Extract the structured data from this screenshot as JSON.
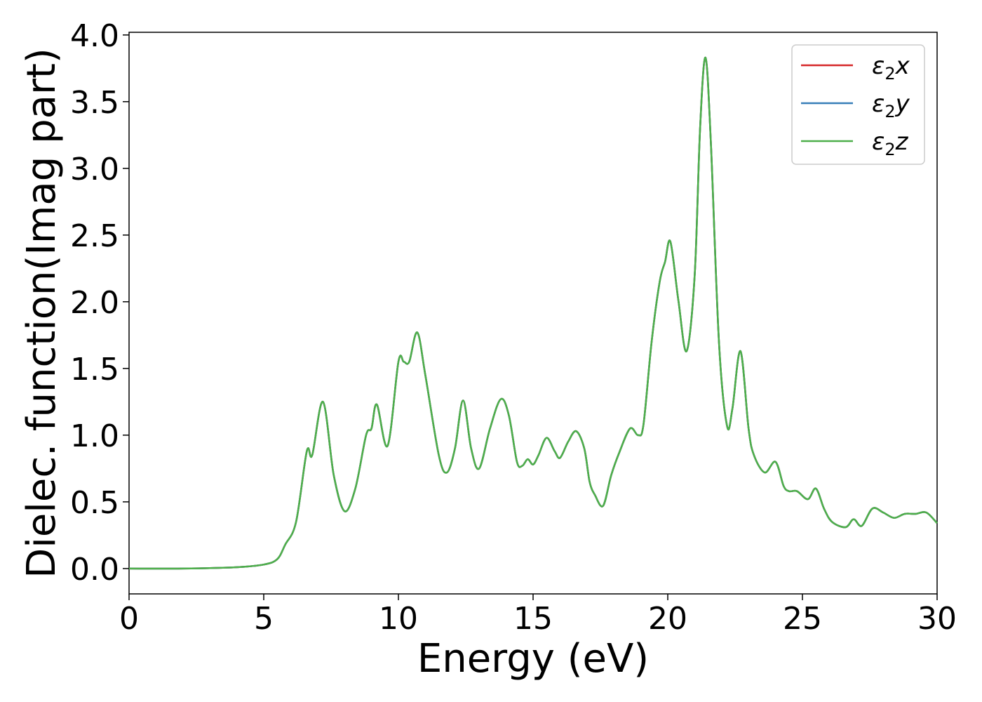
{
  "chart_data": {
    "type": "line",
    "title": "",
    "xlabel": "Energy (eV)",
    "ylabel": "Dielec. function(Imag part)",
    "xlim": [
      0,
      30
    ],
    "ylim": [
      -0.19,
      4.02
    ],
    "xticks": [
      0,
      5,
      10,
      15,
      20,
      25,
      30
    ],
    "xtick_labels": [
      "0",
      "5",
      "10",
      "15",
      "20",
      "25",
      "30"
    ],
    "yticks": [
      0.0,
      0.5,
      1.0,
      1.5,
      2.0,
      2.5,
      3.0,
      3.5,
      4.0
    ],
    "ytick_labels": [
      "0.0",
      "0.5",
      "1.0",
      "1.5",
      "2.0",
      "2.5",
      "3.0",
      "3.5",
      "4.0"
    ],
    "grid": false,
    "legend_position": "top-right",
    "x": [
      0,
      2,
      4,
      5,
      5.5,
      5.8,
      6.2,
      6.6,
      6.8,
      7.2,
      7.6,
      8.0,
      8.4,
      8.8,
      9.0,
      9.2,
      9.6,
      10.0,
      10.2,
      10.4,
      10.7,
      11.0,
      11.5,
      11.8,
      12.1,
      12.4,
      12.7,
      13.0,
      13.4,
      13.8,
      14.1,
      14.4,
      14.6,
      14.8,
      15.0,
      15.2,
      15.5,
      15.8,
      16.0,
      16.3,
      16.6,
      16.9,
      17.1,
      17.3,
      17.6,
      17.9,
      18.2,
      18.6,
      18.9,
      19.1,
      19.4,
      19.7,
      19.9,
      20.1,
      20.4,
      20.7,
      21.0,
      21.2,
      21.4,
      21.6,
      21.9,
      22.2,
      22.4,
      22.7,
      23.0,
      23.2,
      23.6,
      24.0,
      24.3,
      24.5,
      24.8,
      25.2,
      25.5,
      25.8,
      26.1,
      26.6,
      26.9,
      27.2,
      27.6,
      28.0,
      28.4,
      28.8,
      29.2,
      29.6,
      30.0
    ],
    "series": [
      {
        "name": "ε₂x",
        "color": "#d62728",
        "values": [
          0.0,
          0.0,
          0.01,
          0.03,
          0.07,
          0.18,
          0.35,
          0.88,
          0.85,
          1.25,
          0.7,
          0.43,
          0.6,
          1.0,
          1.05,
          1.23,
          0.92,
          1.55,
          1.55,
          1.55,
          1.77,
          1.45,
          0.85,
          0.72,
          0.9,
          1.26,
          0.9,
          0.75,
          1.05,
          1.27,
          1.15,
          0.8,
          0.77,
          0.82,
          0.78,
          0.85,
          0.98,
          0.88,
          0.83,
          0.95,
          1.03,
          0.9,
          0.65,
          0.55,
          0.47,
          0.7,
          0.87,
          1.05,
          1.0,
          1.08,
          1.7,
          2.15,
          2.3,
          2.45,
          2.0,
          1.63,
          2.2,
          3.3,
          3.83,
          3.2,
          1.7,
          1.07,
          1.2,
          1.63,
          1.05,
          0.85,
          0.72,
          0.8,
          0.62,
          0.58,
          0.58,
          0.52,
          0.6,
          0.45,
          0.35,
          0.31,
          0.37,
          0.32,
          0.45,
          0.42,
          0.38,
          0.41,
          0.41,
          0.42,
          0.34
        ]
      },
      {
        "name": "ε₂y",
        "color": "#377eb8",
        "values": [
          0.0,
          0.0,
          0.01,
          0.03,
          0.07,
          0.18,
          0.35,
          0.88,
          0.85,
          1.25,
          0.7,
          0.43,
          0.6,
          1.0,
          1.05,
          1.23,
          0.92,
          1.55,
          1.55,
          1.55,
          1.77,
          1.45,
          0.85,
          0.72,
          0.9,
          1.26,
          0.9,
          0.75,
          1.05,
          1.27,
          1.15,
          0.8,
          0.77,
          0.82,
          0.78,
          0.85,
          0.98,
          0.88,
          0.83,
          0.95,
          1.03,
          0.9,
          0.65,
          0.55,
          0.47,
          0.7,
          0.87,
          1.05,
          1.0,
          1.08,
          1.7,
          2.15,
          2.3,
          2.45,
          2.0,
          1.63,
          2.2,
          3.3,
          3.83,
          3.2,
          1.7,
          1.07,
          1.2,
          1.63,
          1.05,
          0.85,
          0.72,
          0.8,
          0.62,
          0.58,
          0.58,
          0.52,
          0.6,
          0.45,
          0.35,
          0.31,
          0.37,
          0.32,
          0.45,
          0.42,
          0.38,
          0.41,
          0.41,
          0.42,
          0.34
        ]
      },
      {
        "name": "ε₂z",
        "color": "#4daf4a",
        "values": [
          0.0,
          0.0,
          0.01,
          0.03,
          0.07,
          0.18,
          0.35,
          0.88,
          0.85,
          1.25,
          0.7,
          0.43,
          0.6,
          1.0,
          1.05,
          1.23,
          0.92,
          1.55,
          1.55,
          1.55,
          1.77,
          1.45,
          0.85,
          0.72,
          0.9,
          1.26,
          0.9,
          0.75,
          1.05,
          1.27,
          1.15,
          0.8,
          0.77,
          0.82,
          0.78,
          0.85,
          0.98,
          0.88,
          0.83,
          0.95,
          1.03,
          0.9,
          0.65,
          0.55,
          0.47,
          0.7,
          0.87,
          1.05,
          1.0,
          1.08,
          1.7,
          2.15,
          2.3,
          2.45,
          2.0,
          1.63,
          2.2,
          3.3,
          3.83,
          3.2,
          1.7,
          1.07,
          1.2,
          1.63,
          1.05,
          0.85,
          0.72,
          0.8,
          0.62,
          0.58,
          0.58,
          0.52,
          0.6,
          0.45,
          0.35,
          0.31,
          0.37,
          0.32,
          0.45,
          0.42,
          0.38,
          0.41,
          0.41,
          0.42,
          0.34
        ]
      }
    ]
  },
  "legend": {
    "labels": [
      {
        "base": "ε",
        "sub": "2",
        "tail": "x"
      },
      {
        "base": "ε",
        "sub": "2",
        "tail": "y"
      },
      {
        "base": "ε",
        "sub": "2",
        "tail": "z"
      }
    ]
  }
}
